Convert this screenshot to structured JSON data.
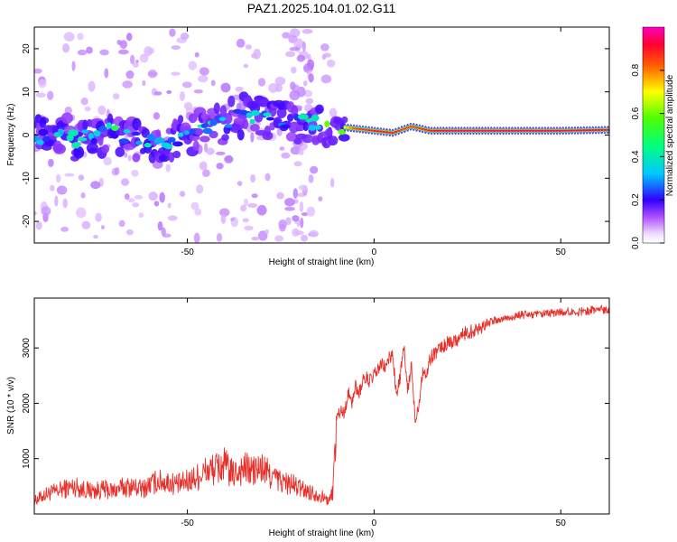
{
  "title": "PAZ1.2025.104.01.02.G11",
  "colors": {
    "snr_line": "#e8302a",
    "spectrogram_ridge": "#e8302a",
    "axes": "#000000"
  },
  "colorbar": {
    "label": "Normalized spectral amplitude",
    "ticks": [
      "0.0",
      "0.2",
      "0.4",
      "0.6",
      "0.8"
    ],
    "range": [
      0,
      1
    ]
  },
  "chart_data": [
    {
      "type": "heatmap",
      "name": "spectrogram",
      "xlabel": "Height of straight line (km)",
      "ylabel": "Frequency (Hz)",
      "xlim": [
        -91,
        63
      ],
      "ylim": [
        -25,
        25
      ],
      "xticks": [
        -50,
        0,
        50
      ],
      "xtick_labels": [
        "-50",
        "0",
        "50"
      ],
      "yticks": [
        -20,
        -10,
        0,
        10,
        20
      ],
      "ytick_labels": [
        "-20",
        "-10",
        "0",
        "10",
        "20"
      ],
      "colormap": "hsv (magenta-blue-cyan-green-yellow-red-magenta)",
      "ridge": {
        "description": "dominant frequency ridge",
        "x": [
          -91,
          -85,
          -80,
          -75,
          -70,
          -65,
          -60,
          -55,
          -50,
          -45,
          -40,
          -35,
          -30,
          -25,
          -20,
          -15,
          -10,
          -5,
          0,
          5,
          10,
          15,
          20,
          30,
          40,
          50,
          63
        ],
        "y": [
          -0.5,
          0.5,
          -1,
          0,
          1,
          -0.5,
          -1.5,
          -2,
          0,
          1.5,
          3,
          4.5,
          4,
          3.5,
          3,
          2.5,
          2,
          1.5,
          1,
          0.5,
          2,
          1,
          1,
          1,
          1,
          1,
          1.2
        ],
        "amplitude": [
          0.25,
          0.3,
          0.35,
          0.3,
          0.4,
          0.3,
          0.35,
          0.3,
          0.3,
          0.35,
          0.3,
          0.35,
          0.3,
          0.3,
          0.3,
          0.4,
          0.55,
          0.85,
          0.9,
          0.9,
          0.85,
          0.9,
          0.95,
          0.95,
          0.95,
          0.95,
          0.95
        ]
      }
    },
    {
      "type": "line",
      "name": "snr",
      "xlabel": "Height of straight line (km)",
      "ylabel": "SNR (10 * v/v)",
      "xlim": [
        -91,
        63
      ],
      "ylim": [
        0,
        3900
      ],
      "xticks": [
        -50,
        0,
        50
      ],
      "xtick_labels": [
        "-50",
        "0",
        "50"
      ],
      "yticks": [
        1000,
        2000,
        3000
      ],
      "ytick_labels": [
        "1000",
        "2000",
        "3000"
      ],
      "series": [
        {
          "x": [
            -91,
            -88,
            -85,
            -82,
            -80,
            -78,
            -75,
            -72,
            -70,
            -68,
            -65,
            -62,
            -60,
            -58,
            -55,
            -52,
            -50,
            -48,
            -45,
            -42,
            -40,
            -38,
            -35,
            -32,
            -30,
            -28,
            -25,
            -22,
            -20,
            -18,
            -15,
            -12,
            -11,
            -10,
            -9,
            -8,
            -7,
            -6,
            -5,
            -4,
            -3,
            -2,
            -1,
            0,
            1,
            2,
            3,
            4,
            5,
            6,
            7,
            8,
            9,
            10,
            11,
            12,
            13,
            14,
            15,
            16,
            18,
            20,
            22,
            24,
            26,
            28,
            30,
            33,
            36,
            40,
            45,
            50,
            55,
            60,
            63
          ],
          "y": [
            200,
            300,
            350,
            400,
            420,
            380,
            350,
            380,
            350,
            400,
            420,
            380,
            450,
            500,
            480,
            450,
            500,
            550,
            650,
            700,
            750,
            600,
            700,
            650,
            700,
            600,
            500,
            450,
            400,
            350,
            300,
            200,
            350,
            1700,
            1900,
            1800,
            2200,
            2000,
            2300,
            2200,
            2400,
            2450,
            2400,
            2500,
            2600,
            2700,
            2650,
            2800,
            2900,
            2100,
            2500,
            3000,
            2200,
            2700,
            1700,
            2000,
            2600,
            2500,
            2800,
            2900,
            3000,
            3100,
            3150,
            3250,
            3300,
            3350,
            3450,
            3500,
            3550,
            3600,
            3600,
            3650,
            3650,
            3700,
            3700
          ]
        }
      ]
    }
  ]
}
